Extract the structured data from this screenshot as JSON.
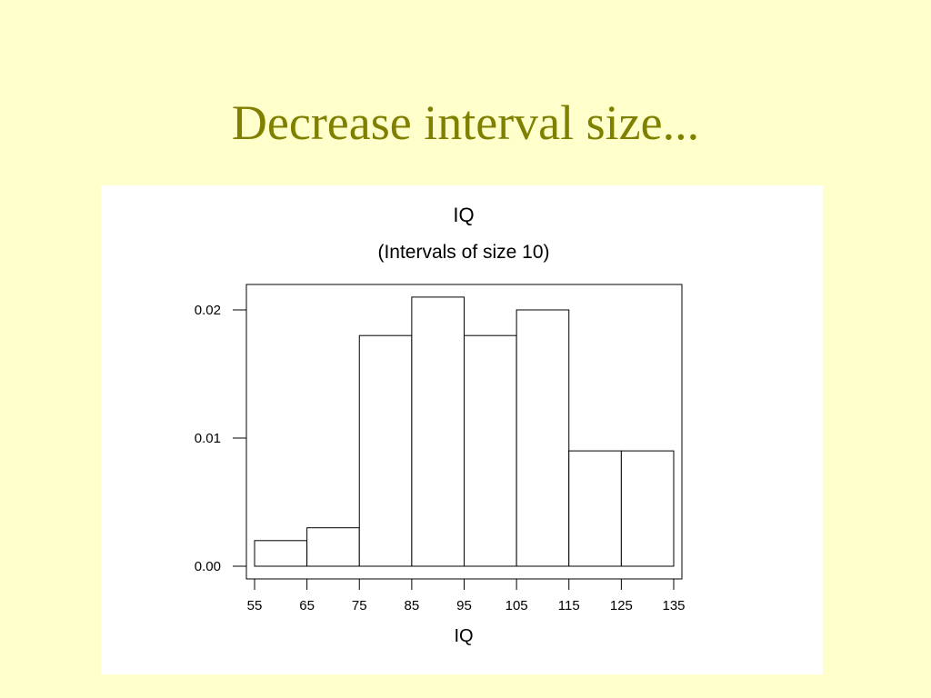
{
  "slide": {
    "title": "Decrease interval size..."
  },
  "chart_data": {
    "type": "bar",
    "title": "IQ",
    "subtitle": "(Intervals of size 10)",
    "xlabel": "IQ",
    "ylabel": "",
    "bin_edges": [
      55,
      65,
      75,
      85,
      95,
      105,
      115,
      125,
      135
    ],
    "values": [
      0.002,
      0.003,
      0.018,
      0.021,
      0.018,
      0.02,
      0.009,
      0.009
    ],
    "x_ticks": [
      55,
      65,
      75,
      85,
      95,
      105,
      115,
      125,
      135
    ],
    "y_ticks": [
      "0.00",
      "0.01",
      "0.02"
    ],
    "ylim": [
      0,
      0.022
    ],
    "xlim": [
      55,
      135
    ],
    "grid": false,
    "legend": "none"
  }
}
